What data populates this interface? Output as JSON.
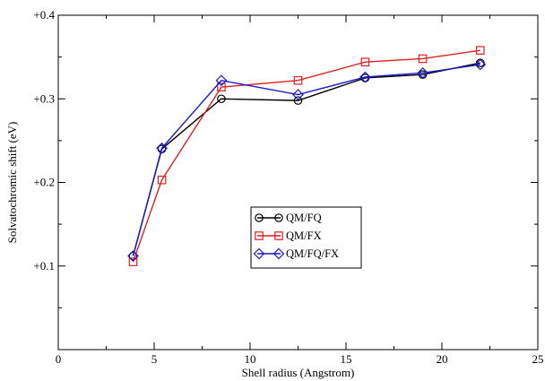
{
  "chart_data": {
    "type": "line",
    "xlabel": "Shell radius (Angstrom)",
    "ylabel": "Solvatochromic shift (eV)",
    "xlim": [
      0,
      25
    ],
    "ylim": [
      0,
      0.4
    ],
    "xticks": [
      0,
      5,
      10,
      15,
      20,
      25
    ],
    "xtick_labels": [
      "0",
      "5",
      "10",
      "15",
      "20",
      "25"
    ],
    "yticks": [
      0.1,
      0.2,
      0.3,
      0.4
    ],
    "ytick_labels": [
      "+0.1",
      "+0.2",
      "+0.3",
      "+0.4"
    ],
    "grid": false,
    "legend_position": "center",
    "series": [
      {
        "name": "QM/FQ",
        "color": "#000000",
        "marker": "circle",
        "x": [
          3.9,
          5.4,
          8.5,
          12.5,
          16,
          19,
          22
        ],
        "y": [
          0.112,
          0.24,
          0.3,
          0.298,
          0.325,
          0.329,
          0.343
        ]
      },
      {
        "name": "QM/FX",
        "color": "#e02020",
        "marker": "square",
        "x": [
          3.9,
          5.4,
          8.5,
          12.5,
          16,
          19,
          22
        ],
        "y": [
          0.105,
          0.203,
          0.314,
          0.322,
          0.344,
          0.348,
          0.358
        ]
      },
      {
        "name": "QM/FQ/FX",
        "color": "#1a1acc",
        "marker": "diamond",
        "x": [
          3.9,
          5.4,
          8.5,
          12.5,
          16,
          19,
          22
        ],
        "y": [
          0.112,
          0.241,
          0.322,
          0.305,
          0.326,
          0.331,
          0.341
        ]
      }
    ]
  }
}
